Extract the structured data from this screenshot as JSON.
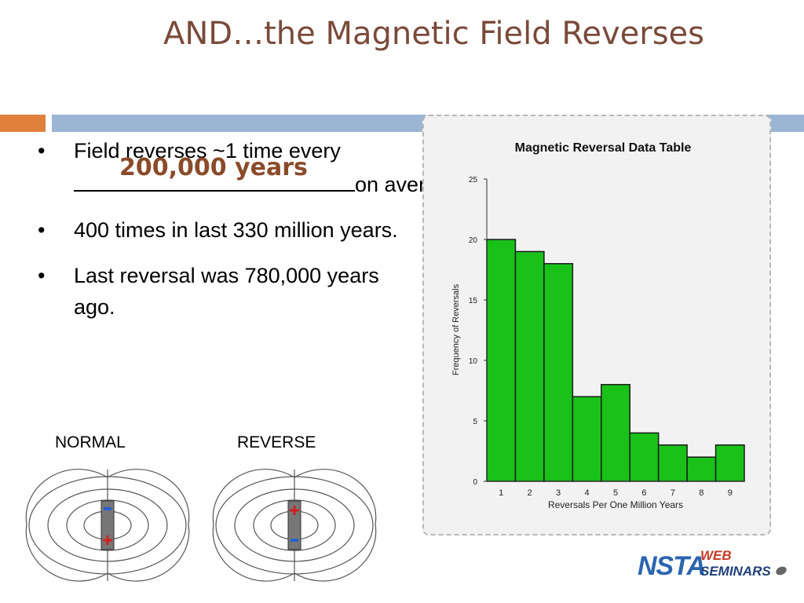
{
  "slide": {
    "title": "AND…the Magnetic Field Reverses",
    "bullets": [
      {
        "pre": "Field reverses ~1 time every",
        "answer": "200,000 years",
        "post": "on average."
      },
      {
        "text": "400 times in last 330 million years."
      },
      {
        "text": "Last reversal was 780,000 years ago."
      }
    ],
    "bullet_glyph": "•",
    "normal_label": "NORMAL",
    "reverse_label": "REVERSE",
    "logo": {
      "nsta": "NSTA",
      "web": "WEB",
      "seminars": "SEMINARS"
    }
  },
  "colors": {
    "title": "#7a4a3a",
    "accent": "#e0803c",
    "bar_rule": "#9ab6d4",
    "answer": "#8a4b2a",
    "bars": "#19c119"
  },
  "icons": {
    "normal_magnet": "bar-magnet-field-lines-icon",
    "reverse_magnet": "bar-magnet-field-lines-icon"
  },
  "chart_data": {
    "type": "bar",
    "title": "Magnetic Reversal Data Table",
    "xlabel": "Reversals Per One Million Years",
    "ylabel": "Frequency of Reversals",
    "categories": [
      "1",
      "2",
      "3",
      "4",
      "5",
      "6",
      "7",
      "8",
      "9"
    ],
    "values": [
      20,
      19,
      18,
      7,
      8,
      4,
      3,
      2,
      3
    ],
    "ylim": [
      0,
      25
    ],
    "yticks": [
      "0",
      "5",
      "10",
      "15",
      "20",
      "25"
    ],
    "grid": false,
    "legend": "none"
  }
}
